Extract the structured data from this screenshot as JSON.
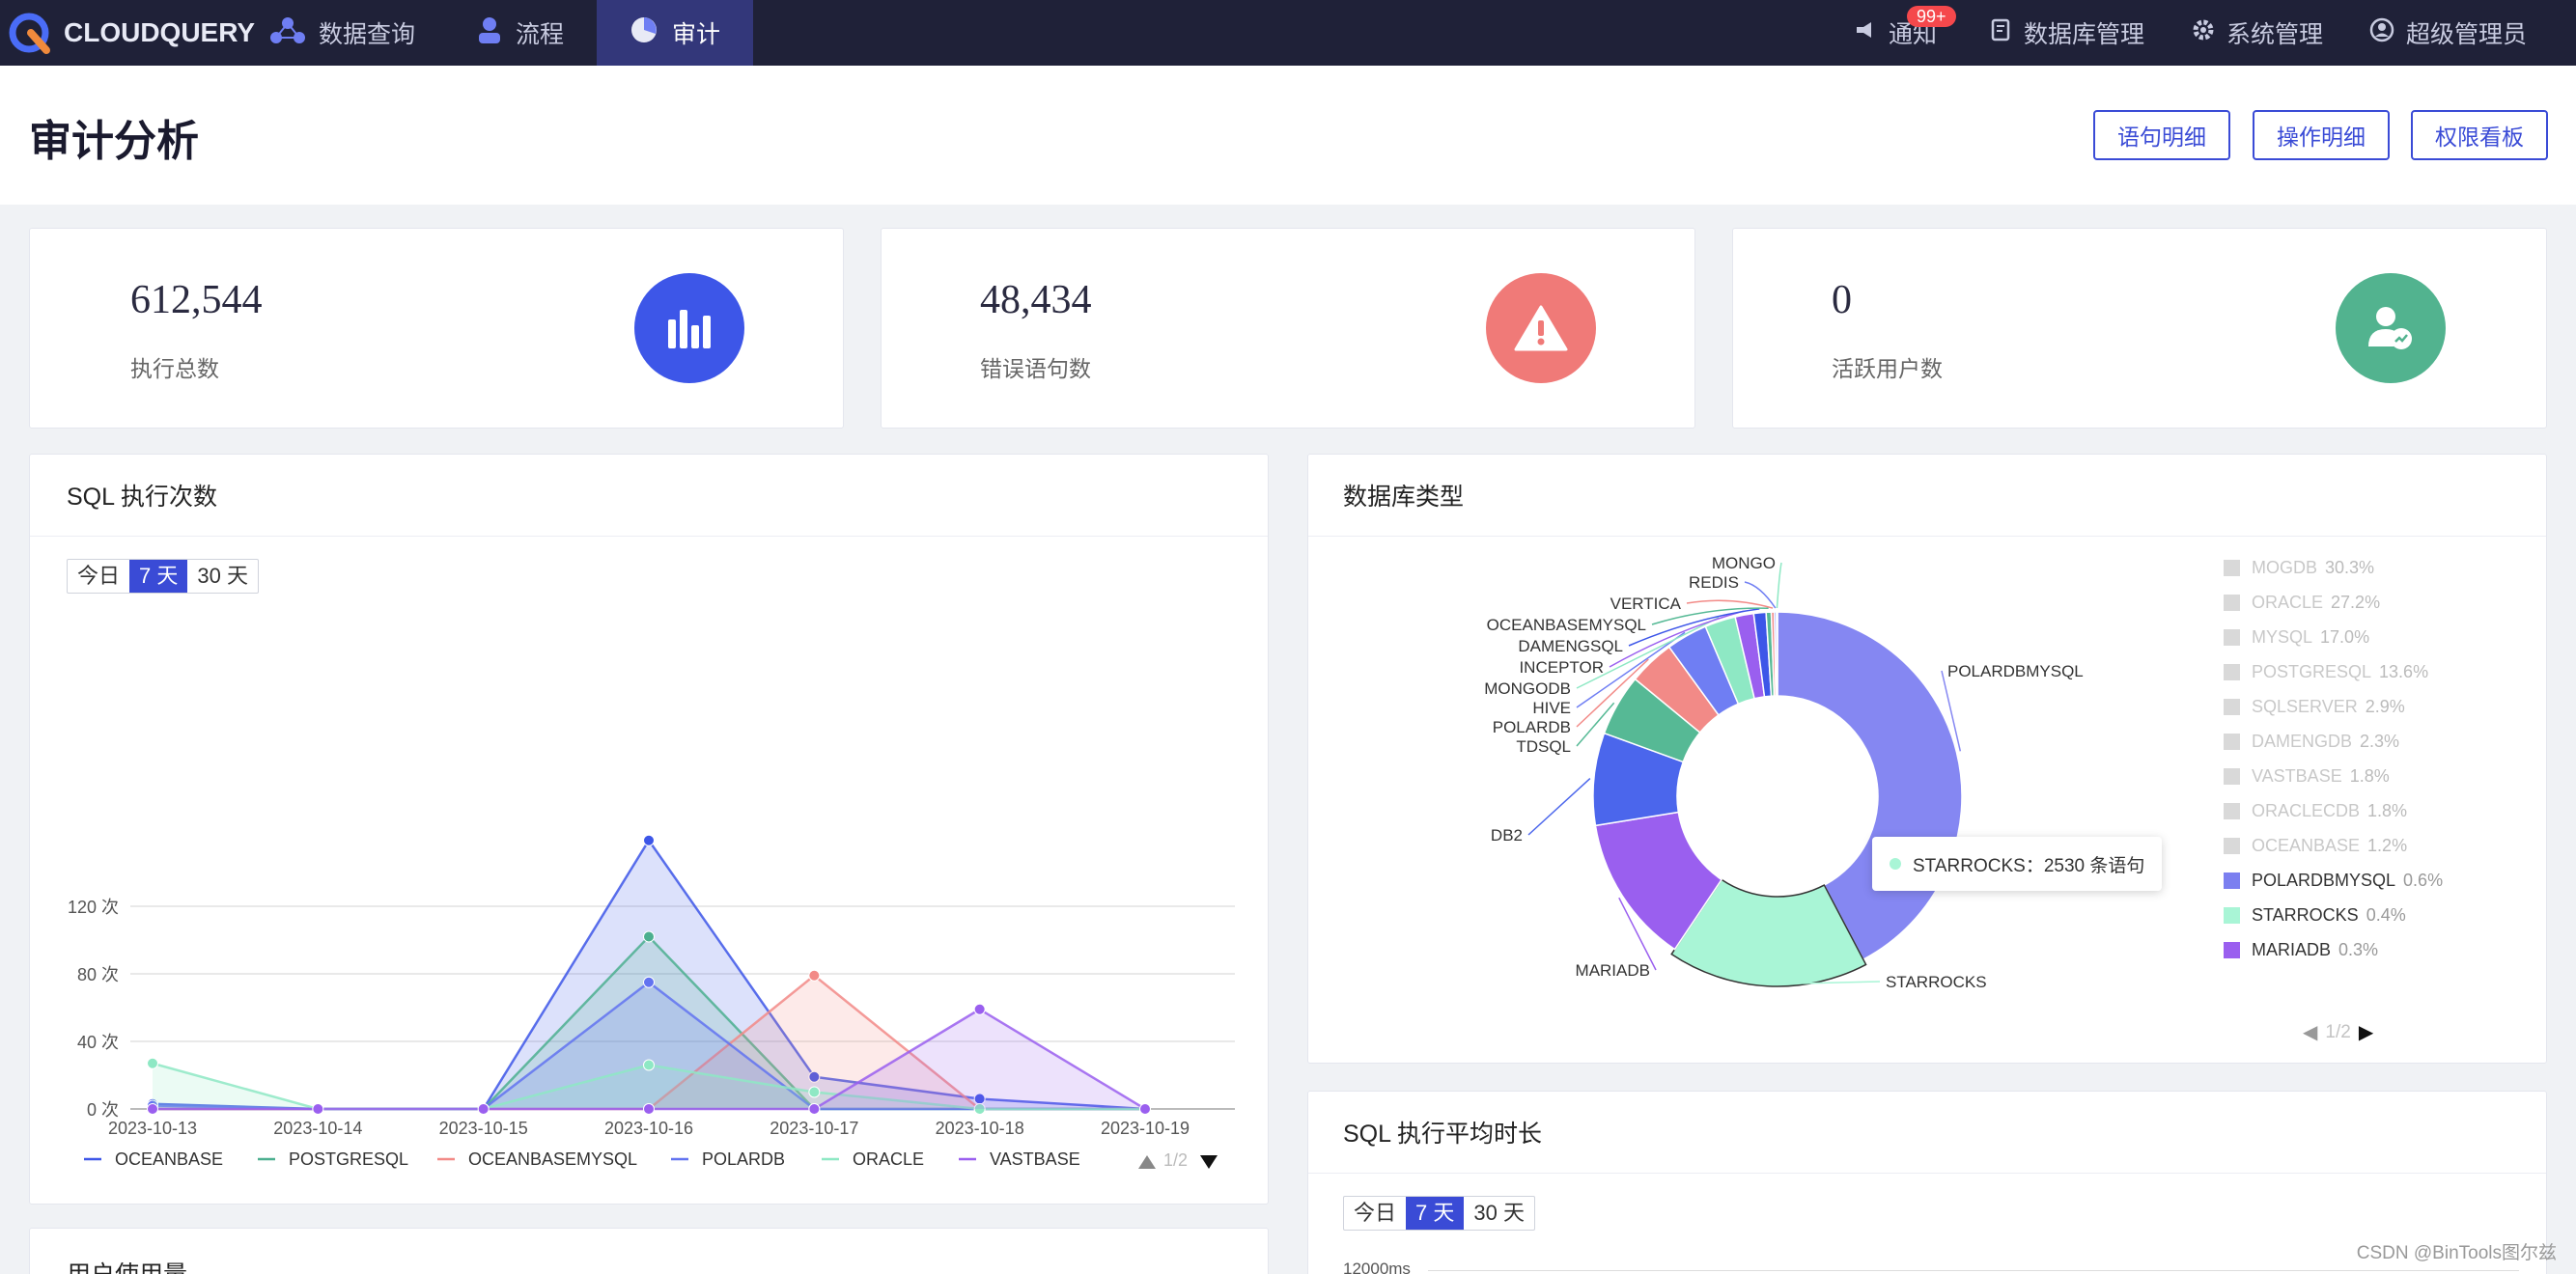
{
  "nav": {
    "logo": "CLOUDQUERY",
    "items": [
      {
        "label": "数据查询"
      },
      {
        "label": "流程"
      },
      {
        "label": "审计"
      }
    ],
    "notification": {
      "label": "通知",
      "badge": "99+"
    },
    "db_manage": "数据库管理",
    "sys_manage": "系统管理",
    "user": "超级管理员"
  },
  "page": {
    "title": "审计分析",
    "buttons": [
      "语句明细",
      "操作明细",
      "权限看板"
    ]
  },
  "stats": [
    {
      "value": "612,544",
      "label": "执行总数",
      "color": "#3d56e8",
      "icon": "bar-chart-icon"
    },
    {
      "value": "48,434",
      "label": "错误语句数",
      "color": "#f07a78",
      "icon": "warning-icon"
    },
    {
      "value": "0",
      "label": "活跃用户数",
      "color": "#52b38f",
      "icon": "user-trend-icon"
    }
  ],
  "sql_exec": {
    "title": "SQL 执行次数",
    "range_options": [
      "今日",
      "7 天",
      "30 天"
    ],
    "range_selected": "7 天",
    "pager": "1/2"
  },
  "db_type": {
    "title": "数据库类型",
    "tooltip": "STARROCKS：2530 条语句",
    "pager": "1/2"
  },
  "avg_time": {
    "title": "SQL 执行平均时长",
    "range_options": [
      "今日",
      "7 天",
      "30 天"
    ],
    "range_selected": "7 天",
    "y_top_label": "12000ms"
  },
  "user_usage": {
    "title": "用户使用量"
  },
  "watermark": "CSDN @BinTools图尔兹",
  "chart_data": [
    {
      "type": "area",
      "title": "SQL 执行次数",
      "x": [
        "2023-10-13",
        "2023-10-14",
        "2023-10-15",
        "2023-10-16",
        "2023-10-17",
        "2023-10-18",
        "2023-10-19"
      ],
      "ylim": [
        0,
        160
      ],
      "yticks": [
        0,
        40,
        80,
        120
      ],
      "ytick_labels": [
        "0 次",
        "40 次",
        "80 次",
        "120 次"
      ],
      "series": [
        {
          "name": "OCEANBASE",
          "color": "#3d56e8",
          "values": [
            3,
            0,
            0,
            159,
            19,
            6,
            0
          ]
        },
        {
          "name": "POSTGRESQL",
          "color": "#4caf8f",
          "values": [
            0,
            0,
            0,
            102,
            0,
            0,
            0
          ]
        },
        {
          "name": "OCEANBASEMYSQL",
          "color": "#f28a87",
          "values": [
            0,
            0,
            0,
            0,
            79,
            0,
            0
          ]
        },
        {
          "name": "POLARDB",
          "color": "#6273f0",
          "values": [
            2,
            0,
            0,
            75,
            0,
            0,
            0
          ]
        },
        {
          "name": "ORACLE",
          "color": "#8ee8c4",
          "values": [
            27,
            0,
            0,
            26,
            10,
            0,
            0
          ]
        },
        {
          "name": "VASTBASE",
          "color": "#9a5fef",
          "values": [
            0,
            0,
            0,
            0,
            0,
            59,
            0
          ]
        }
      ],
      "legend_visible": [
        "OCEANBASE",
        "POSTGRESQL",
        "OCEANBASEMYSQL",
        "POLARDB",
        "ORACLE",
        "VASTBASE"
      ],
      "grid": true,
      "legend": "bottom"
    },
    {
      "type": "pie",
      "title": "数据库类型",
      "donut": true,
      "slices": [
        {
          "name": "POLARDBMYSQL",
          "color": "#8587f2",
          "value": 47
        },
        {
          "name": "STARROCKS",
          "color": "#a9f5d6",
          "value": 19
        },
        {
          "name": "MARIADB",
          "color": "#9a5fef",
          "value": 14.5
        },
        {
          "name": "DB2",
          "color": "#4b66ec",
          "value": 9
        },
        {
          "name": "TDSQL",
          "color": "#56b995",
          "value": 6
        },
        {
          "name": "POLARDB",
          "color": "#f28a87",
          "value": 4.5
        },
        {
          "name": "HIVE",
          "color": "#6f7ef3",
          "value": 4
        },
        {
          "name": "MONGODB",
          "color": "#8ee8c4",
          "value": 3
        },
        {
          "name": "INCEPTOR",
          "color": "#9a5fef",
          "value": 1.8
        },
        {
          "name": "DAMENGSQL",
          "color": "#3d56e8",
          "value": 1.2
        },
        {
          "name": "OCEANBASEMYSQL",
          "color": "#56b995",
          "value": 0.5
        },
        {
          "name": "VERTICA",
          "color": "#f28a87",
          "value": 0.3
        },
        {
          "name": "REDIS",
          "color": "#6f7ef3",
          "value": 0.2
        },
        {
          "name": "MONGO",
          "color": "#8ee8c4",
          "value": 0.1
        }
      ],
      "legend": [
        {
          "label": "MOGDB",
          "pct": "30.3%",
          "active": false
        },
        {
          "label": "ORACLE",
          "pct": "27.2%",
          "active": false
        },
        {
          "label": "MYSQL",
          "pct": "17.0%",
          "active": false
        },
        {
          "label": "POSTGRESQL",
          "pct": "13.6%",
          "active": false
        },
        {
          "label": "SQLSERVER",
          "pct": "2.9%",
          "active": false
        },
        {
          "label": "DAMENGDB",
          "pct": "2.3%",
          "active": false
        },
        {
          "label": "VASTBASE",
          "pct": "1.8%",
          "active": false
        },
        {
          "label": "ORACLECDB",
          "pct": "1.8%",
          "active": false
        },
        {
          "label": "OCEANBASE",
          "pct": "1.2%",
          "active": false
        },
        {
          "label": "POLARDBMYSQL",
          "pct": "0.6%",
          "active": true,
          "color": "#7b7ff0"
        },
        {
          "label": "STARROCKS",
          "pct": "0.4%",
          "active": true,
          "color": "#a9f5d6"
        },
        {
          "label": "MARIADB",
          "pct": "0.3%",
          "active": true,
          "color": "#9a5fef"
        }
      ]
    }
  ]
}
